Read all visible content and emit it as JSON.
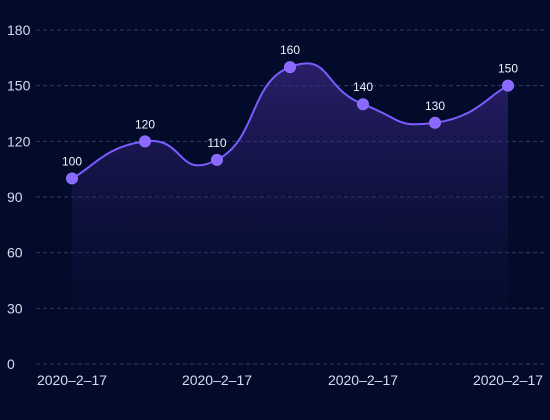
{
  "chart_data": {
    "type": "area",
    "categories": [
      "2020-2-17",
      "",
      "2020-2-17",
      "",
      "2020-2-17",
      "",
      "2020-2-17"
    ],
    "x_tick_labels": [
      "2020–2–17",
      "2020–2–17",
      "2020–2–17",
      "2020–2–17"
    ],
    "series": [
      {
        "values": [
          100,
          120,
          110,
          160,
          140,
          130,
          150
        ]
      }
    ],
    "ylim": [
      0,
      180
    ],
    "yticks": [
      0,
      30,
      60,
      90,
      120,
      150,
      180
    ],
    "grid": true,
    "colors": {
      "background": "#020b2a",
      "grid": "#34446f",
      "line": "#7b5cff",
      "point": "#8b68ff",
      "label": "#d7dbef"
    }
  }
}
